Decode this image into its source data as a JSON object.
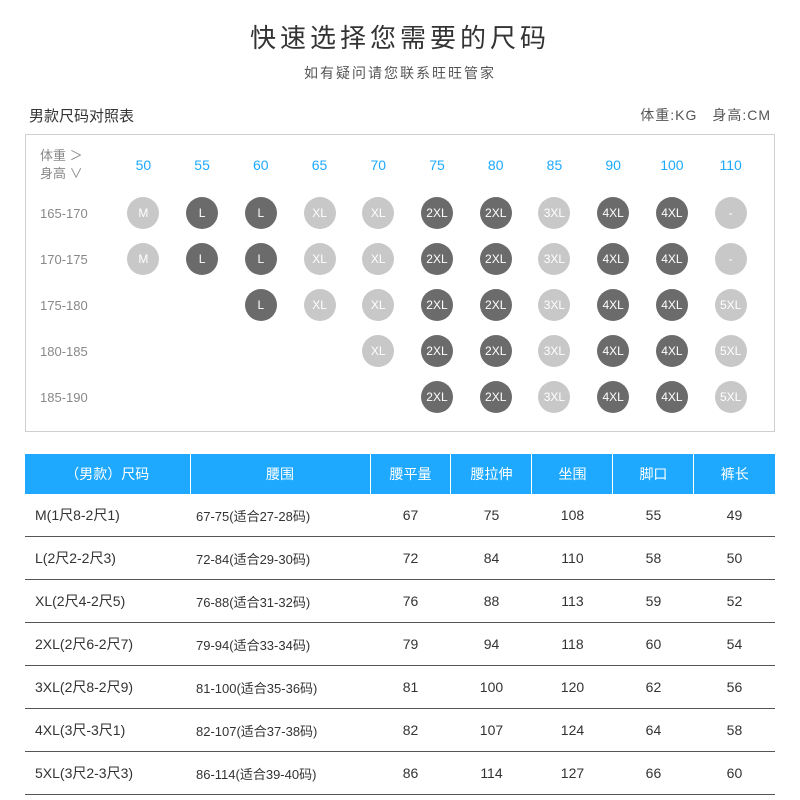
{
  "title": "快速选择您需要的尺码",
  "subtitle": "如有疑问请您联系旺旺管家",
  "chart": {
    "caption": "男款尺码对照表",
    "units": "体重:KG　身高:CM",
    "corner_top": "体重 ＞",
    "corner_bottom": "身高 ∨",
    "weights": [
      "50",
      "55",
      "60",
      "65",
      "70",
      "75",
      "80",
      "85",
      "90",
      "100",
      "110"
    ],
    "heights": [
      "165-170",
      "170-175",
      "175-180",
      "180-185",
      "185-190"
    ],
    "colors": {
      "light": "#c8c8c8",
      "dark": "#6b6b6b",
      "header_blue": "#1ea9ff"
    },
    "grid": [
      [
        {
          "t": "M",
          "s": "light"
        },
        {
          "t": "L",
          "s": "dark"
        },
        {
          "t": "L",
          "s": "dark"
        },
        {
          "t": "XL",
          "s": "light"
        },
        {
          "t": "XL",
          "s": "light"
        },
        {
          "t": "2XL",
          "s": "dark"
        },
        {
          "t": "2XL",
          "s": "dark"
        },
        {
          "t": "3XL",
          "s": "light"
        },
        {
          "t": "4XL",
          "s": "dark"
        },
        {
          "t": "4XL",
          "s": "dark"
        },
        {
          "t": "-",
          "s": "empty"
        }
      ],
      [
        {
          "t": "M",
          "s": "light"
        },
        {
          "t": "L",
          "s": "dark"
        },
        {
          "t": "L",
          "s": "dark"
        },
        {
          "t": "XL",
          "s": "light"
        },
        {
          "t": "XL",
          "s": "light"
        },
        {
          "t": "2XL",
          "s": "dark"
        },
        {
          "t": "2XL",
          "s": "dark"
        },
        {
          "t": "3XL",
          "s": "light"
        },
        {
          "t": "4XL",
          "s": "dark"
        },
        {
          "t": "4XL",
          "s": "dark"
        },
        {
          "t": "-",
          "s": "empty"
        }
      ],
      [
        null,
        null,
        {
          "t": "L",
          "s": "dark"
        },
        {
          "t": "XL",
          "s": "light"
        },
        {
          "t": "XL",
          "s": "light"
        },
        {
          "t": "2XL",
          "s": "dark"
        },
        {
          "t": "2XL",
          "s": "dark"
        },
        {
          "t": "3XL",
          "s": "light"
        },
        {
          "t": "4XL",
          "s": "dark"
        },
        {
          "t": "4XL",
          "s": "dark"
        },
        {
          "t": "5XL",
          "s": "light"
        }
      ],
      [
        null,
        null,
        null,
        null,
        {
          "t": "XL",
          "s": "light"
        },
        {
          "t": "2XL",
          "s": "dark"
        },
        {
          "t": "2XL",
          "s": "dark"
        },
        {
          "t": "3XL",
          "s": "light"
        },
        {
          "t": "4XL",
          "s": "dark"
        },
        {
          "t": "4XL",
          "s": "dark"
        },
        {
          "t": "5XL",
          "s": "light"
        }
      ],
      [
        null,
        null,
        null,
        null,
        null,
        {
          "t": "2XL",
          "s": "dark"
        },
        {
          "t": "2XL",
          "s": "dark"
        },
        {
          "t": "3XL",
          "s": "light"
        },
        {
          "t": "4XL",
          "s": "dark"
        },
        {
          "t": "4XL",
          "s": "dark"
        },
        {
          "t": "5XL",
          "s": "light"
        }
      ]
    ]
  },
  "table": {
    "columns": [
      "（男款）尺码",
      "腰围",
      "腰平量",
      "腰拉伸",
      "坐围",
      "脚口",
      "裤长"
    ],
    "rows": [
      [
        "M(1尺8-2尺1)",
        "67-75(适合27-28码)",
        "67",
        "75",
        "108",
        "55",
        "49"
      ],
      [
        "L(2尺2-2尺3)",
        "72-84(适合29-30码)",
        "72",
        "84",
        "110",
        "58",
        "50"
      ],
      [
        "XL(2尺4-2尺5)",
        "76-88(适合31-32码)",
        "76",
        "88",
        "113",
        "59",
        "52"
      ],
      [
        "2XL(2尺6-2尺7)",
        "79-94(适合33-34码)",
        "79",
        "94",
        "118",
        "60",
        "54"
      ],
      [
        "3XL(2尺8-2尺9)",
        "81-100(适合35-36码)",
        "81",
        "100",
        "120",
        "62",
        "56"
      ],
      [
        "4XL(3尺-3尺1)",
        "82-107(适合37-38码)",
        "82",
        "107",
        "124",
        "64",
        "58"
      ],
      [
        "5XL(3尺2-3尺3)",
        "86-114(适合39-40码)",
        "86",
        "114",
        "127",
        "66",
        "60"
      ]
    ]
  }
}
